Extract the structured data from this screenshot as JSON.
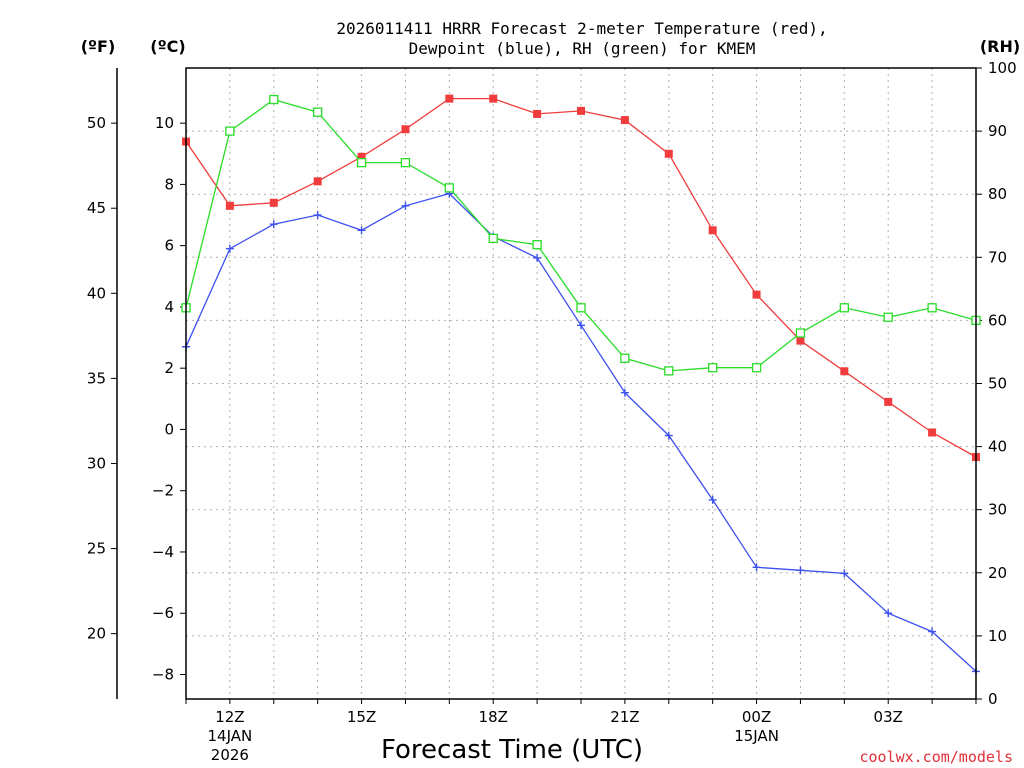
{
  "chart_data": {
    "type": "line",
    "title_line1": "2026011411 HRRR Forecast 2-meter Temperature (red),",
    "title_line2": "Dewpoint (blue), RH (green) for KMEM",
    "xlabel": "Forecast Time (UTC)",
    "credit": "coolwx.com/models",
    "units": {
      "fahrenheit": "(ºF)",
      "celsius": "(ºC)",
      "rh": "(RH)"
    },
    "x": [
      11,
      12,
      13,
      14,
      15,
      16,
      17,
      18,
      19,
      20,
      21,
      22,
      23,
      24,
      25,
      26,
      27,
      28,
      29
    ],
    "xlim": [
      11,
      29
    ],
    "x_ticks": [
      {
        "x": 12,
        "label": "12Z",
        "date": "14JAN",
        "year": "2026"
      },
      {
        "x": 15,
        "label": "15Z"
      },
      {
        "x": 18,
        "label": "18Z"
      },
      {
        "x": 21,
        "label": "21Z"
      },
      {
        "x": 24,
        "label": "00Z",
        "date": "15JAN"
      },
      {
        "x": 27,
        "label": "03Z"
      }
    ],
    "celsius_axis": {
      "ylim": [
        -8.8,
        11.8
      ],
      "ticks": [
        10,
        8,
        6,
        4,
        2,
        0,
        -2,
        -4,
        -6,
        -8
      ]
    },
    "fahrenheit_axis": {
      "ticks": [
        50,
        45,
        40,
        35,
        30,
        25,
        20
      ]
    },
    "rh_axis": {
      "ylim": [
        0,
        100
      ],
      "ticks": [
        100,
        90,
        80,
        70,
        60,
        50,
        40,
        30,
        20,
        10,
        0
      ]
    },
    "series": [
      {
        "name": "Temperature",
        "axis": "celsius",
        "color": "#f03c3c",
        "marker": "filled-square",
        "values": [
          9.4,
          7.3,
          7.4,
          8.1,
          8.9,
          9.8,
          10.8,
          10.8,
          10.3,
          10.4,
          10.1,
          9.0,
          6.5,
          4.4,
          2.9,
          1.9,
          0.9,
          -0.1,
          -0.9
        ]
      },
      {
        "name": "Dewpoint",
        "axis": "celsius",
        "color": "#3c50f0",
        "marker": "plus",
        "values": [
          2.7,
          5.9,
          6.7,
          7.0,
          6.5,
          7.3,
          7.7,
          6.3,
          5.6,
          3.4,
          1.2,
          -0.2,
          -2.3,
          -4.5,
          -4.6,
          -4.7,
          -6.0,
          -6.6,
          -7.9
        ]
      },
      {
        "name": "RH",
        "axis": "rh",
        "color": "#28dc28",
        "marker": "open-square",
        "values": [
          62,
          90,
          95,
          93,
          85,
          85,
          81,
          73,
          72,
          62,
          54,
          52,
          52.5,
          52.5,
          58,
          62,
          60.5,
          62,
          60
        ]
      }
    ]
  }
}
